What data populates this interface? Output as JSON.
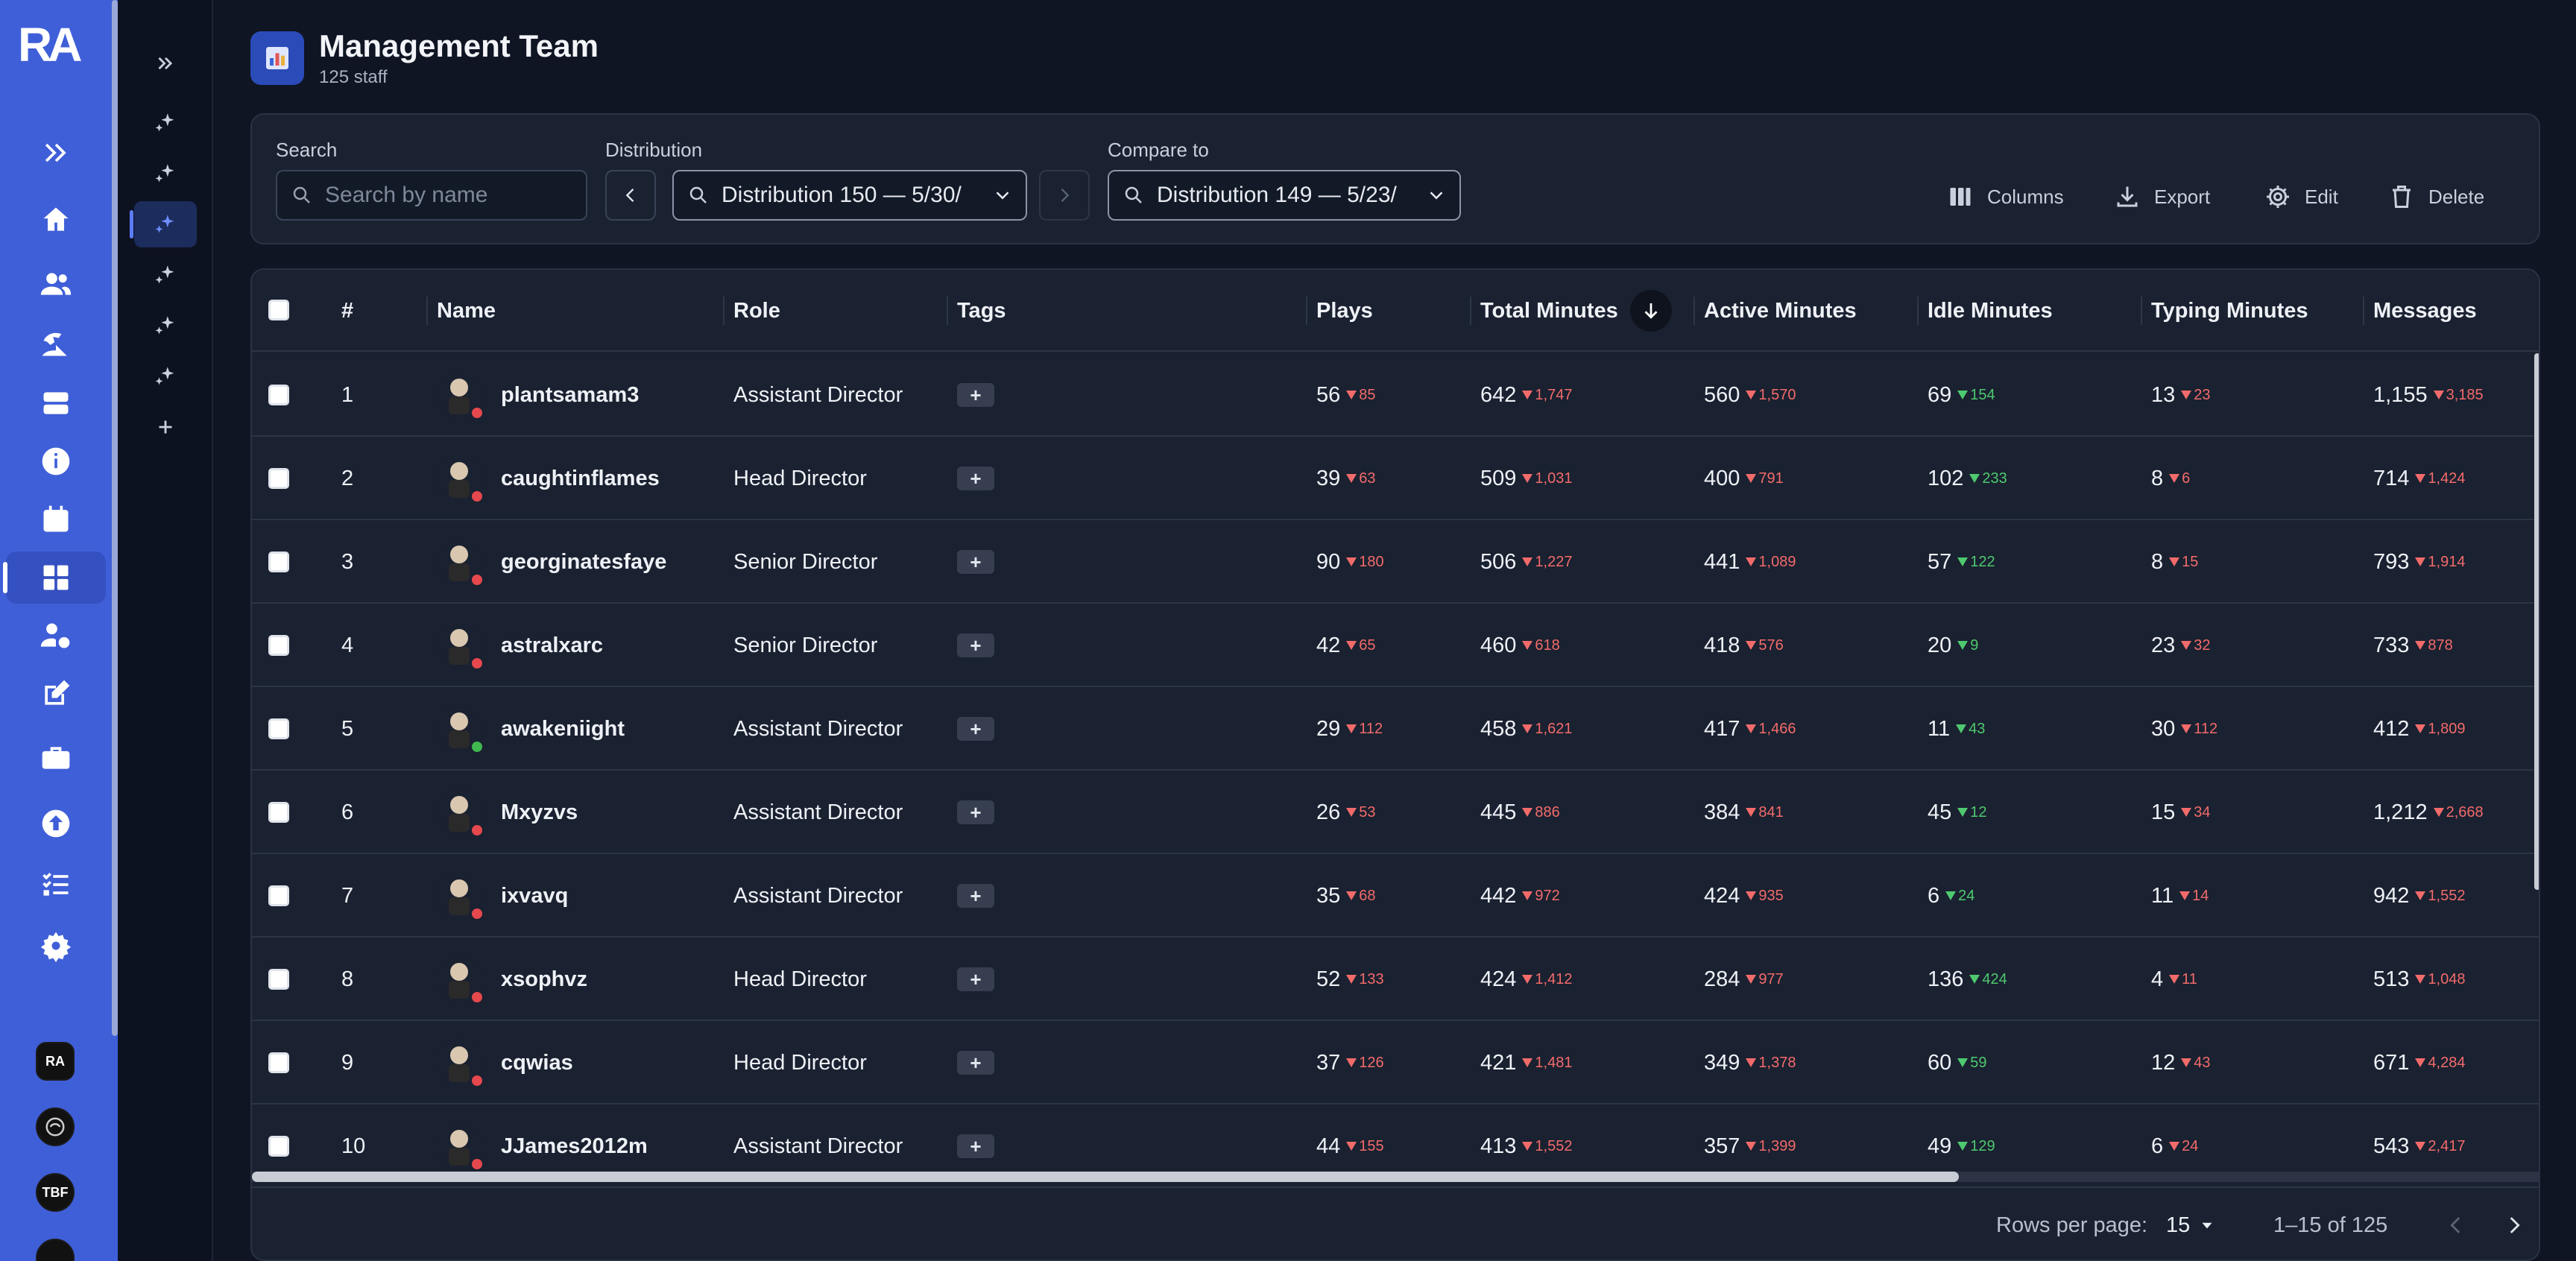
{
  "app": {
    "logo_text": "RA"
  },
  "header": {
    "title": "Management Team",
    "subtitle": "125 staff"
  },
  "toolbar": {
    "search_label": "Search",
    "search_placeholder": "Search by name",
    "distribution_label": "Distribution",
    "distribution_value": "Distribution 150 — 5/30/",
    "compare_label": "Compare to",
    "compare_value": "Distribution 149 — 5/23/",
    "columns_label": "Columns",
    "export_label": "Export",
    "edit_label": "Edit",
    "delete_label": "Delete"
  },
  "servers": [
    {
      "label": "RA"
    },
    {
      "label": ""
    },
    {
      "label": "TBF"
    }
  ],
  "table": {
    "columns": [
      "#",
      "Name",
      "Role",
      "Tags",
      "Plays",
      "Total Minutes",
      "Active Minutes",
      "Idle Minutes",
      "Typing Minutes",
      "Messages"
    ],
    "tag_add": "+",
    "rows": [
      {
        "n": "1",
        "name": "plantsamam3",
        "role": "Assistant Director",
        "status": "#e5484d",
        "plays": "56",
        "plays_d": "85",
        "total": "642",
        "total_d": "1,747",
        "active": "560",
        "active_d": "1,570",
        "idle": "69",
        "idle_d": "154",
        "typing": "13",
        "typing_d": "23",
        "msgs": "1,155",
        "msgs_d": "3,185"
      },
      {
        "n": "2",
        "name": "caughtinflames",
        "role": "Head Director",
        "status": "#e5484d",
        "plays": "39",
        "plays_d": "63",
        "total": "509",
        "total_d": "1,031",
        "active": "400",
        "active_d": "791",
        "idle": "102",
        "idle_d": "233",
        "typing": "8",
        "typing_d": "6",
        "msgs": "714",
        "msgs_d": "1,424"
      },
      {
        "n": "3",
        "name": "georginatesfaye",
        "role": "Senior Director",
        "status": "#e5484d",
        "plays": "90",
        "plays_d": "180",
        "total": "506",
        "total_d": "1,227",
        "active": "441",
        "active_d": "1,089",
        "idle": "57",
        "idle_d": "122",
        "typing": "8",
        "typing_d": "15",
        "msgs": "793",
        "msgs_d": "1,914"
      },
      {
        "n": "4",
        "name": "astralxarc",
        "role": "Senior Director",
        "status": "#e5484d",
        "plays": "42",
        "plays_d": "65",
        "total": "460",
        "total_d": "618",
        "active": "418",
        "active_d": "576",
        "idle": "20",
        "idle_d": "9",
        "typing": "23",
        "typing_d": "32",
        "msgs": "733",
        "msgs_d": "878"
      },
      {
        "n": "5",
        "name": "awakeniight",
        "role": "Assistant Director",
        "status": "#3fb950",
        "plays": "29",
        "plays_d": "112",
        "total": "458",
        "total_d": "1,621",
        "active": "417",
        "active_d": "1,466",
        "idle": "11",
        "idle_d": "43",
        "typing": "30",
        "typing_d": "112",
        "msgs": "412",
        "msgs_d": "1,809"
      },
      {
        "n": "6",
        "name": "Mxyzvs",
        "role": "Assistant Director",
        "status": "#e5484d",
        "plays": "26",
        "plays_d": "53",
        "total": "445",
        "total_d": "886",
        "active": "384",
        "active_d": "841",
        "idle": "45",
        "idle_d": "12",
        "typing": "15",
        "typing_d": "34",
        "msgs": "1,212",
        "msgs_d": "2,668"
      },
      {
        "n": "7",
        "name": "ixvavq",
        "role": "Assistant Director",
        "status": "#e5484d",
        "plays": "35",
        "plays_d": "68",
        "total": "442",
        "total_d": "972",
        "active": "424",
        "active_d": "935",
        "idle": "6",
        "idle_d": "24",
        "typing": "11",
        "typing_d": "14",
        "msgs": "942",
        "msgs_d": "1,552"
      },
      {
        "n": "8",
        "name": "xsophvz",
        "role": "Head Director",
        "status": "#e5484d",
        "plays": "52",
        "plays_d": "133",
        "total": "424",
        "total_d": "1,412",
        "active": "284",
        "active_d": "977",
        "idle": "136",
        "idle_d": "424",
        "typing": "4",
        "typing_d": "11",
        "msgs": "513",
        "msgs_d": "1,048"
      },
      {
        "n": "9",
        "name": "cqwias",
        "role": "Head Director",
        "status": "#e5484d",
        "plays": "37",
        "plays_d": "126",
        "total": "421",
        "total_d": "1,481",
        "active": "349",
        "active_d": "1,378",
        "idle": "60",
        "idle_d": "59",
        "typing": "12",
        "typing_d": "43",
        "msgs": "671",
        "msgs_d": "4,284"
      },
      {
        "n": "10",
        "name": "JJames2012m",
        "role": "Assistant Director",
        "status": "#e5484d",
        "plays": "44",
        "plays_d": "155",
        "total": "413",
        "total_d": "1,552",
        "active": "357",
        "active_d": "1,399",
        "idle": "49",
        "idle_d": "129",
        "typing": "6",
        "typing_d": "24",
        "msgs": "543",
        "msgs_d": "2,417"
      }
    ]
  },
  "pagination": {
    "rows_per_page_label": "Rows per page:",
    "rows_per_page": "15",
    "range": "1–15 of 125"
  },
  "colors": {
    "rail": "#3f5fd8",
    "background": "#0f1523",
    "card": "#1a2130",
    "down": "#f26b6b",
    "up": "#4ec96f"
  }
}
